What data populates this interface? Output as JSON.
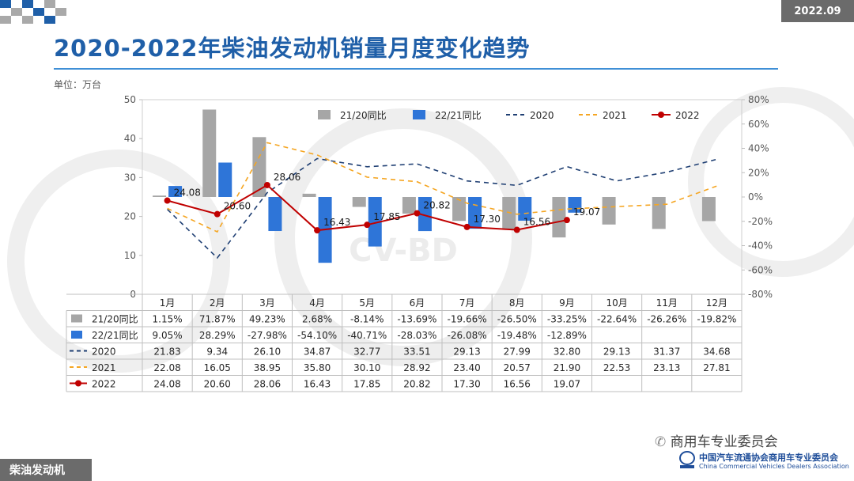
{
  "header": {
    "date_badge": "2022.09",
    "title": "2020-2022年柴油发动机销量月度变化趋势",
    "unit": "单位：万台"
  },
  "footer": {
    "section_label": "柴油发动机",
    "wechat_account": "商用车专业委员会",
    "association_cn": "中国汽车流通协会商用车专业委员会",
    "association_en": "China Commercial Vehicles Dealers Association",
    "watermark": "CV-BD"
  },
  "colors": {
    "title_blue": "#1f5fa8",
    "bar_2120": "#a6a6a6",
    "bar_2221": "#2e75d8",
    "line_2020": "#1f3f73",
    "line_2021": "#f5a623",
    "line_2022": "#c00000"
  },
  "chart_data": {
    "type": "bar",
    "categories": [
      "1月",
      "2月",
      "3月",
      "4月",
      "5月",
      "6月",
      "7月",
      "8月",
      "9月",
      "10月",
      "11月",
      "12月"
    ],
    "y_left": {
      "min": 0,
      "max": 50,
      "ticks": [
        "0",
        "10",
        "20",
        "30",
        "40",
        "50"
      ]
    },
    "y_right": {
      "min": -80,
      "max": 80,
      "ticks": [
        "-80%",
        "-60%",
        "-40%",
        "-20%",
        "0%",
        "20%",
        "40%",
        "60%",
        "80%"
      ]
    },
    "grid": false,
    "legend_position": "top",
    "series": [
      {
        "name": "21/20同比",
        "kind": "bar",
        "axis": "right",
        "color": "#a6a6a6",
        "values": [
          1.15,
          71.87,
          49.23,
          2.68,
          -8.14,
          -13.69,
          -19.66,
          -26.5,
          -33.25,
          -22.64,
          -26.26,
          -19.82
        ],
        "labels": [
          "1.15%",
          "71.87%",
          "49.23%",
          "2.68%",
          "-8.14%",
          "-13.69%",
          "-19.66%",
          "-26.50%",
          "-33.25%",
          "-22.64%",
          "-26.26%",
          "-19.82%"
        ]
      },
      {
        "name": "22/21同比",
        "kind": "bar",
        "axis": "right",
        "color": "#2e75d8",
        "values": [
          9.05,
          28.29,
          -27.98,
          -54.1,
          -40.71,
          -28.03,
          -26.08,
          -19.48,
          -12.89,
          null,
          null,
          null
        ],
        "labels": [
          "9.05%",
          "28.29%",
          "-27.98%",
          "-54.10%",
          "-40.71%",
          "-28.03%",
          "-26.08%",
          "-19.48%",
          "-12.89%",
          "",
          "",
          ""
        ]
      },
      {
        "name": "2020",
        "kind": "dash",
        "axis": "left",
        "color": "#1f3f73",
        "values": [
          21.83,
          9.34,
          26.1,
          34.87,
          32.77,
          33.51,
          29.13,
          27.99,
          32.8,
          29.13,
          31.37,
          34.68
        ],
        "labels": [
          "21.83",
          "9.34",
          "26.10",
          "34.87",
          "32.77",
          "33.51",
          "29.13",
          "27.99",
          "32.80",
          "29.13",
          "31.37",
          "34.68"
        ]
      },
      {
        "name": "2021",
        "kind": "dash",
        "axis": "left",
        "color": "#f5a623",
        "values": [
          22.08,
          16.05,
          38.95,
          35.8,
          30.1,
          28.92,
          23.4,
          20.57,
          21.9,
          22.53,
          23.13,
          27.81
        ],
        "labels": [
          "22.08",
          "16.05",
          "38.95",
          "35.80",
          "30.10",
          "28.92",
          "23.40",
          "20.57",
          "21.90",
          "22.53",
          "23.13",
          "27.81"
        ]
      },
      {
        "name": "2022",
        "kind": "marker",
        "axis": "left",
        "color": "#c00000",
        "values": [
          24.08,
          20.6,
          28.06,
          16.43,
          17.85,
          20.82,
          17.3,
          16.56,
          19.07,
          null,
          null,
          null
        ],
        "labels": [
          "24.08",
          "20.60",
          "28.06",
          "16.43",
          "17.85",
          "20.82",
          "17.30",
          "16.56",
          "19.07",
          "",
          "",
          ""
        ]
      }
    ]
  }
}
